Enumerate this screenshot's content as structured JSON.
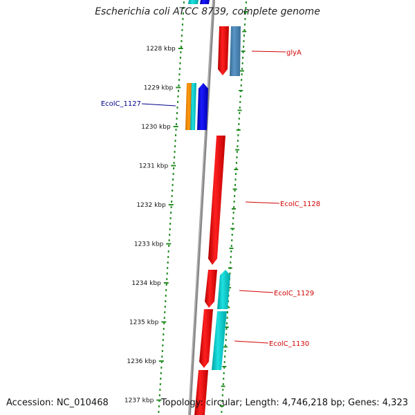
{
  "title": "Escherichia coli ATCC 8739, complete genome",
  "accession_text": "Accession: NC_010468",
  "topology_text": "Topology: circular; Length: 4,746,218 bp; Genes: 4,323",
  "ticks": [
    {
      "label": "1228 kbp"
    },
    {
      "label": "1229 kbp"
    },
    {
      "label": "1230 kbp"
    },
    {
      "label": "1231 kbp"
    },
    {
      "label": "1232 kbp"
    },
    {
      "label": "1233 kbp"
    },
    {
      "label": "1234 kbp"
    },
    {
      "label": "1235 kbp"
    },
    {
      "label": "1236 kbp"
    },
    {
      "label": "1237 kbp"
    }
  ],
  "gene_labels": [
    {
      "label": "glyA",
      "color": "#d00000"
    },
    {
      "label": "EcolC_1127",
      "color": "#00008b"
    },
    {
      "label": "EcolC_1128",
      "color": "#d00000"
    },
    {
      "label": "EcolC_1129",
      "color": "#d00000"
    },
    {
      "label": "EcolC_1130",
      "color": "#d00000"
    }
  ],
  "colors": {
    "cds_red": "#ff0000",
    "cds_blue": "#0000ee",
    "cds_cyan": "#00cccc",
    "cds_steel": "#4682b4",
    "cds_orange": "#ff8c00",
    "backbone": "#888888",
    "dots": "#228b22"
  }
}
